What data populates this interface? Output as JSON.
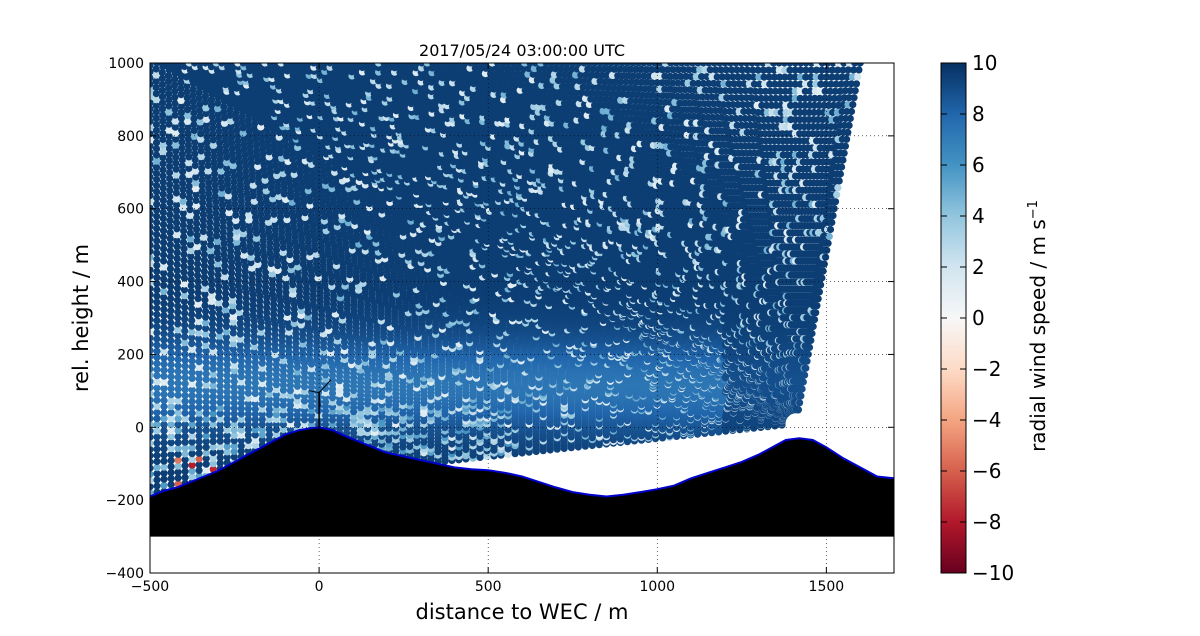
{
  "chart_data": {
    "type": "scatter",
    "title": "2017/05/24 03:00:00 UTC",
    "xlabel": "distance to WEC / m",
    "ylabel": "rel. height / m",
    "xlim": [
      -500,
      1700
    ],
    "ylim": [
      -400,
      1000
    ],
    "xticks": [
      -500,
      0,
      500,
      1000,
      1500
    ],
    "yticks": [
      -400,
      -200,
      0,
      200,
      400,
      600,
      800,
      1000
    ],
    "xtick_labels": [
      "−500",
      "0",
      "500",
      "1000",
      "1500"
    ],
    "ytick_labels": [
      "−400",
      "−200",
      "0",
      "200",
      "400",
      "600",
      "800",
      "1000"
    ],
    "grid": true,
    "scan_origin": {
      "x": 1410,
      "y": 10
    },
    "beam_end_top": [
      [
        -500,
        1000
      ],
      [
        1610,
        1000
      ]
    ],
    "wind_field_description": "RHI lidar scan of radial wind speed; mostly 6-10 m/s, lower values near the hill tops",
    "terrain_profile": [
      {
        "x": -500,
        "y": -190
      },
      {
        "x": -460,
        "y": -175
      },
      {
        "x": -420,
        "y": -165
      },
      {
        "x": -380,
        "y": -150
      },
      {
        "x": -340,
        "y": -135
      },
      {
        "x": -300,
        "y": -120
      },
      {
        "x": -260,
        "y": -100
      },
      {
        "x": -220,
        "y": -80
      },
      {
        "x": -180,
        "y": -60
      },
      {
        "x": -140,
        "y": -40
      },
      {
        "x": -100,
        "y": -20
      },
      {
        "x": -60,
        "y": -8
      },
      {
        "x": -20,
        "y": -2
      },
      {
        "x": 0,
        "y": 0
      },
      {
        "x": 40,
        "y": -8
      },
      {
        "x": 80,
        "y": -25
      },
      {
        "x": 120,
        "y": -40
      },
      {
        "x": 160,
        "y": -55
      },
      {
        "x": 200,
        "y": -70
      },
      {
        "x": 250,
        "y": -80
      },
      {
        "x": 300,
        "y": -90
      },
      {
        "x": 350,
        "y": -100
      },
      {
        "x": 400,
        "y": -110
      },
      {
        "x": 450,
        "y": -115
      },
      {
        "x": 500,
        "y": -118
      },
      {
        "x": 550,
        "y": -125
      },
      {
        "x": 600,
        "y": -135
      },
      {
        "x": 650,
        "y": -150
      },
      {
        "x": 700,
        "y": -165
      },
      {
        "x": 750,
        "y": -178
      },
      {
        "x": 800,
        "y": -185
      },
      {
        "x": 850,
        "y": -190
      },
      {
        "x": 900,
        "y": -185
      },
      {
        "x": 950,
        "y": -178
      },
      {
        "x": 1000,
        "y": -170
      },
      {
        "x": 1050,
        "y": -160
      },
      {
        "x": 1100,
        "y": -140
      },
      {
        "x": 1150,
        "y": -125
      },
      {
        "x": 1200,
        "y": -110
      },
      {
        "x": 1250,
        "y": -95
      },
      {
        "x": 1300,
        "y": -75
      },
      {
        "x": 1340,
        "y": -55
      },
      {
        "x": 1380,
        "y": -35
      },
      {
        "x": 1420,
        "y": -30
      },
      {
        "x": 1460,
        "y": -35
      },
      {
        "x": 1500,
        "y": -55
      },
      {
        "x": 1550,
        "y": -85
      },
      {
        "x": 1600,
        "y": -110
      },
      {
        "x": 1650,
        "y": -135
      },
      {
        "x": 1700,
        "y": -140
      }
    ],
    "terrain_base": -300,
    "turbine": {
      "x": 0,
      "hub_height": 95
    },
    "colorbar": {
      "label": "radial wind speed / m s",
      "label_superscript": "−1",
      "range": [
        -10,
        10
      ],
      "ticks": [
        10,
        8,
        6,
        4,
        2,
        0,
        -2,
        -4,
        -6,
        -8,
        -10
      ],
      "tick_labels": [
        "10",
        "8",
        "6",
        "4",
        "2",
        "0",
        "−2",
        "−4",
        "−6",
        "−8",
        "−10"
      ],
      "colormap": "RdBu",
      "stops": [
        {
          "v": -10,
          "c": "#67001f"
        },
        {
          "v": -8,
          "c": "#b2182b"
        },
        {
          "v": -6,
          "c": "#d6604d"
        },
        {
          "v": -4,
          "c": "#f4a582"
        },
        {
          "v": -2,
          "c": "#fddbc7"
        },
        {
          "v": 0,
          "c": "#f7f7f7"
        },
        {
          "v": 2,
          "c": "#d1e5f0"
        },
        {
          "v": 4,
          "c": "#92c5de"
        },
        {
          "v": 6,
          "c": "#4393c3"
        },
        {
          "v": 8,
          "c": "#2166ac"
        },
        {
          "v": 10,
          "c": "#053061"
        }
      ]
    },
    "terrain_color": "#000000",
    "terrain_outline_color": "#0000cc"
  }
}
